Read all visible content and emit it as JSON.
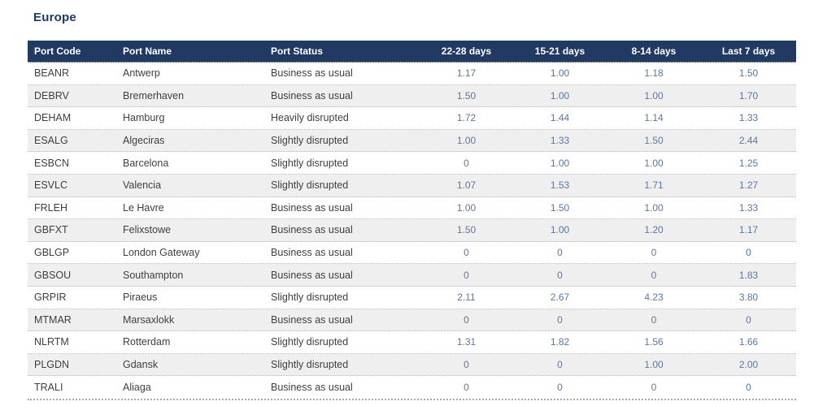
{
  "title": "Europe",
  "colors": {
    "navy": "#203a63",
    "title": "#1d3a66",
    "text": "#3f3f3f",
    "num": "#5d77a3",
    "stripe": "#f0efef"
  },
  "chart_data": {
    "type": "table",
    "title": "Europe",
    "columns": [
      "Port Code",
      "Port Name",
      "Port Status",
      "22-28 days",
      "15-21 days",
      "8-14 days",
      "Last 7 days"
    ],
    "rows": [
      [
        "BEANR",
        "Antwerp",
        "Business as usual",
        "1.17",
        "1.00",
        "1.18",
        "1.50"
      ],
      [
        "DEBRV",
        "Bremerhaven",
        "Business as usual",
        "1.50",
        "1.00",
        "1.00",
        "1.70"
      ],
      [
        "DEHAM",
        "Hamburg",
        "Heavily disrupted",
        "1.72",
        "1.44",
        "1.14",
        "1.33"
      ],
      [
        "ESALG",
        "Algeciras",
        "Slightly disrupted",
        "1.00",
        "1.33",
        "1.50",
        "2.44"
      ],
      [
        "ESBCN",
        "Barcelona",
        "Slightly disrupted",
        "0",
        "1.00",
        "1.00",
        "1.25"
      ],
      [
        "ESVLC",
        "Valencia",
        "Slightly disrupted",
        "1.07",
        "1.53",
        "1.71",
        "1.27"
      ],
      [
        "FRLEH",
        "Le Havre",
        "Business as usual",
        "1.00",
        "1.50",
        "1.00",
        "1.33"
      ],
      [
        "GBFXT",
        "Felixstowe",
        "Business as usual",
        "1.50",
        "1.00",
        "1.20",
        "1.17"
      ],
      [
        "GBLGP",
        "London Gateway",
        "Business as usual",
        "0",
        "0",
        "0",
        "0"
      ],
      [
        "GBSOU",
        "Southampton",
        "Business as usual",
        "0",
        "0",
        "0",
        "1.83"
      ],
      [
        "GRPIR",
        "Piraeus",
        "Slightly disrupted",
        "2.11",
        "2.67",
        "4.23",
        "3.80"
      ],
      [
        "MTMAR",
        "Marsaxlokk",
        "Business as usual",
        "0",
        "0",
        "0",
        "0"
      ],
      [
        "NLRTM",
        "Rotterdam",
        "Slightly disrupted",
        "1.31",
        "1.82",
        "1.56",
        "1.66"
      ],
      [
        "PLGDN",
        "Gdansk",
        "Slightly disrupted",
        "0",
        "0",
        "1.00",
        "2.00"
      ],
      [
        "TRALI",
        "Aliaga",
        "Business as usual",
        "0",
        "0",
        "0",
        "0"
      ]
    ]
  }
}
